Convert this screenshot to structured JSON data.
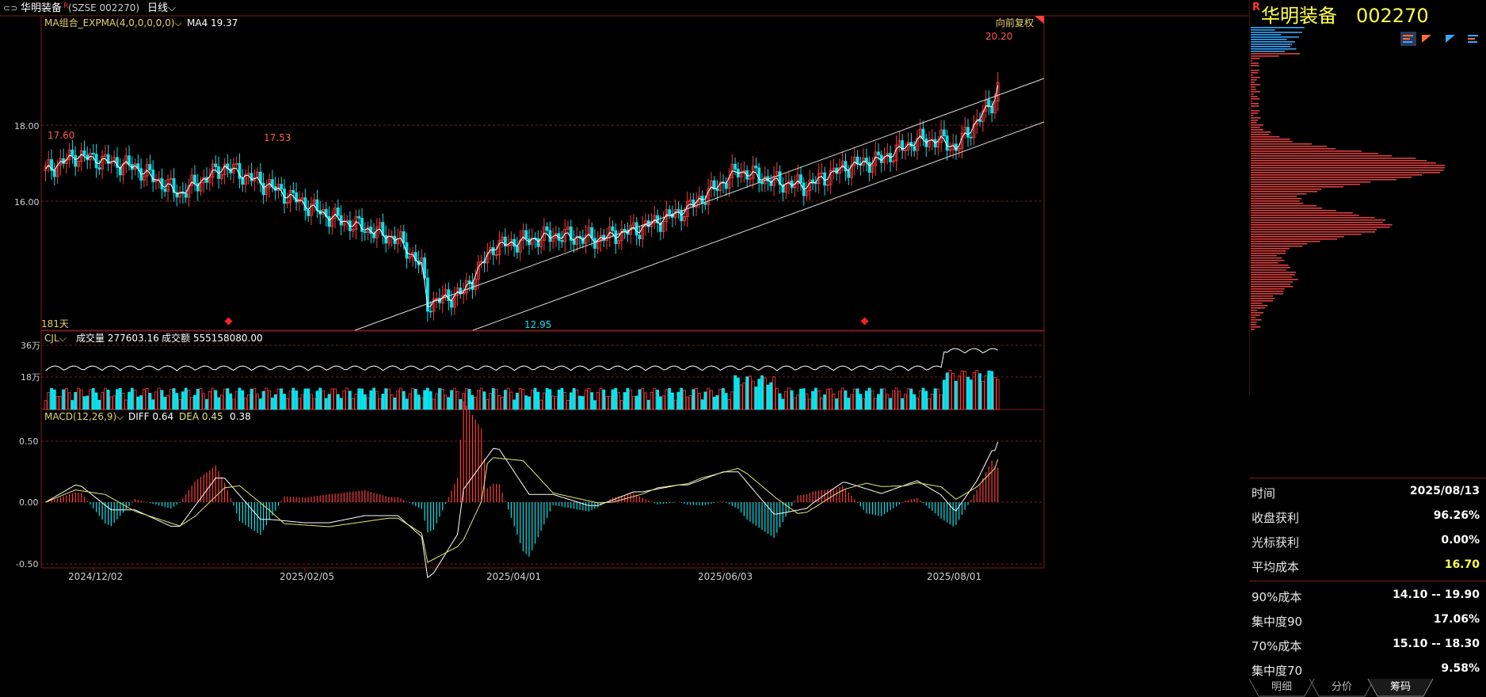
{
  "header": {
    "stock_name": "华明装备",
    "stock_code_full": "SZSE 002270",
    "period": "日线"
  },
  "main_chart": {
    "indicator_label": "MA组合_EXPMA(4,0,0,0,0,0)",
    "ma4_label": "MA4",
    "ma4_value": "19.37",
    "adjust_label": "向前复权",
    "high_label": "20.20",
    "low_label": "12.95",
    "peak1_label": "17.60",
    "peak2_label": "17.53",
    "days_label": "181天",
    "y_ticks": [
      "18.00",
      "16.00"
    ]
  },
  "volume_chart": {
    "indicator_label": "CJL",
    "volume_label": "成交量",
    "volume_value": "277603.16",
    "amount_label": "成交额",
    "amount_value": "555158080.00",
    "y_ticks": [
      "36万",
      "18万"
    ]
  },
  "macd_chart": {
    "indicator_label": "MACD(12,26,9)",
    "diff_label": "DIFF",
    "diff_value": "0.64",
    "dea_label": "DEA",
    "dea_value": "0.45",
    "macd_value": "0.38",
    "y_ticks": [
      "0.50",
      "0.00",
      "-0.50"
    ]
  },
  "x_axis": [
    "2024/12/02",
    "2025/02/05",
    "2025/04/01",
    "2025/06/03",
    "2025/08/01"
  ],
  "right_panel": {
    "title_name": "华明装备",
    "title_code": "002270",
    "rows": [
      {
        "label": "时间",
        "value": "2025/08/13"
      },
      {
        "label": "收盘获利",
        "value": "96.26%"
      },
      {
        "label": "光标获利",
        "value": "0.00%"
      },
      {
        "label": "平均成本",
        "value": "16.70"
      },
      {
        "label": "90%成本",
        "value": "14.10 -- 19.90"
      },
      {
        "label": "集中度90",
        "value": "17.06%"
      },
      {
        "label": "70%成本",
        "value": "15.10 -- 18.30"
      },
      {
        "label": "集中度70",
        "value": "9.58%"
      }
    ],
    "tabs": [
      "明细",
      "分价",
      "筹码"
    ]
  },
  "colors": {
    "up": "#ff3b3b",
    "down": "#00e5ee",
    "grid": "#7a1c1c",
    "ma": "#ffffff",
    "dea": "#e8e87a",
    "label_yellow": "#e8d06a"
  }
}
